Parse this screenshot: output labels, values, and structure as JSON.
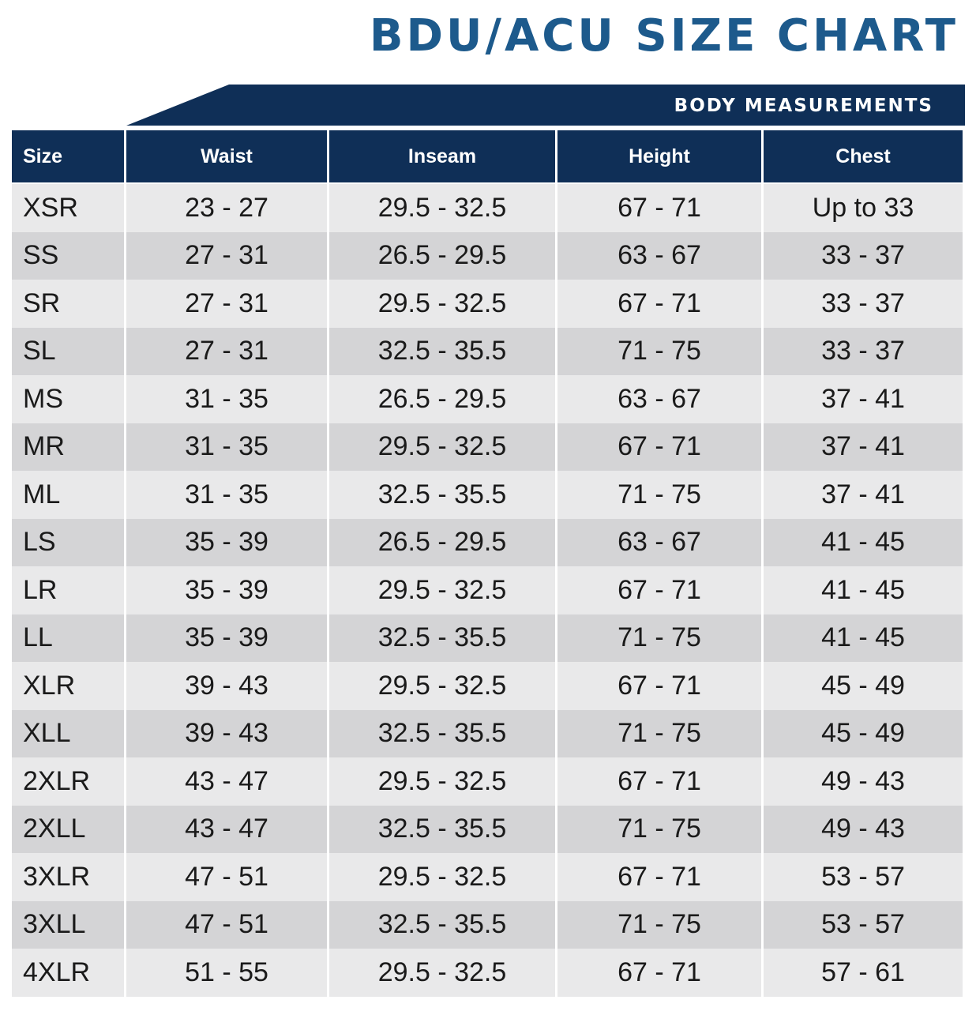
{
  "title": "BDU/ACU SIZE CHART",
  "banner": "BODY MEASUREMENTS",
  "colors": {
    "title": "#1d5a8c",
    "header_bg": "#0f2f57",
    "row_light": "#e9e9ea",
    "row_dark": "#d4d4d6"
  },
  "table": {
    "headers": [
      "Size",
      "Waist",
      "Inseam",
      "Height",
      "Chest"
    ],
    "rows": [
      [
        "XSR",
        "23 - 27",
        "29.5 - 32.5",
        "67 - 71",
        "Up to 33"
      ],
      [
        "SS",
        "27 - 31",
        "26.5 - 29.5",
        "63 - 67",
        "33 - 37"
      ],
      [
        "SR",
        "27 - 31",
        "29.5 - 32.5",
        "67 - 71",
        "33 - 37"
      ],
      [
        "SL",
        "27 - 31",
        "32.5 - 35.5",
        "71 - 75",
        "33 - 37"
      ],
      [
        "MS",
        "31 - 35",
        "26.5 - 29.5",
        "63 - 67",
        "37 - 41"
      ],
      [
        "MR",
        "31 - 35",
        "29.5 - 32.5",
        "67 - 71",
        "37 - 41"
      ],
      [
        "ML",
        "31 - 35",
        "32.5 - 35.5",
        "71 - 75",
        "37 - 41"
      ],
      [
        "LS",
        "35 - 39",
        "26.5 - 29.5",
        "63 - 67",
        "41 - 45"
      ],
      [
        "LR",
        "35 - 39",
        "29.5 - 32.5",
        "67 - 71",
        "41 - 45"
      ],
      [
        "LL",
        "35 - 39",
        "32.5 - 35.5",
        "71 - 75",
        "41 - 45"
      ],
      [
        "XLR",
        "39 - 43",
        "29.5 - 32.5",
        "67 - 71",
        "45 - 49"
      ],
      [
        "XLL",
        "39 - 43",
        "32.5 - 35.5",
        "71 - 75",
        "45 - 49"
      ],
      [
        "2XLR",
        "43 - 47",
        "29.5 - 32.5",
        "67 - 71",
        "49 - 43"
      ],
      [
        "2XLL",
        "43 - 47",
        "32.5 - 35.5",
        "71 - 75",
        "49 - 43"
      ],
      [
        "3XLR",
        "47 - 51",
        "29.5 - 32.5",
        "67 - 71",
        "53 - 57"
      ],
      [
        "3XLL",
        "47 - 51",
        "32.5 - 35.5",
        "71 - 75",
        "53 - 57"
      ],
      [
        "4XLR",
        "51 - 55",
        "29.5 - 32.5",
        "67 - 71",
        "57 - 61"
      ]
    ]
  }
}
